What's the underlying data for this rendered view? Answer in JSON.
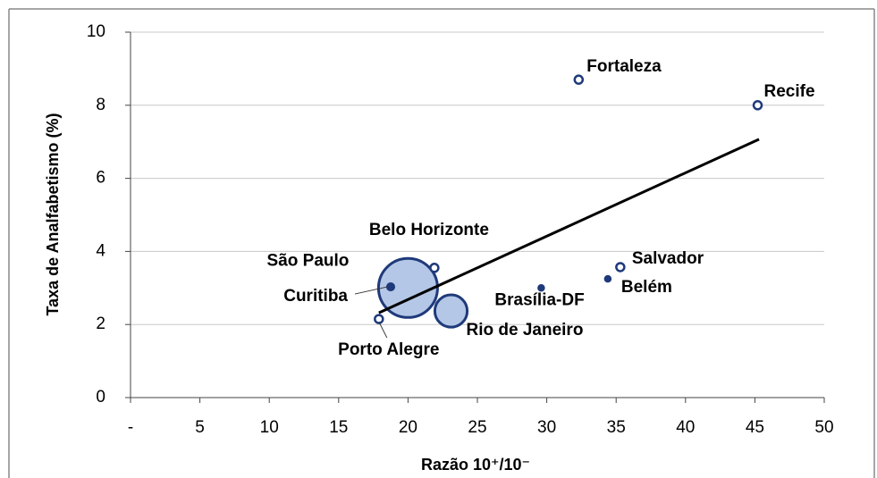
{
  "chart_data": {
    "type": "scatter",
    "x_label": "Razão 10⁺/10⁻",
    "y_label": "Taxa de Analfabetismo (%)",
    "xlim": [
      0,
      50
    ],
    "xticks": [
      {
        "value": 0,
        "label": "-"
      },
      5,
      10,
      15,
      20,
      25,
      30,
      35,
      40,
      45,
      50
    ],
    "ylim": [
      0,
      10
    ],
    "yticks": [
      0,
      2,
      4,
      6,
      8,
      10
    ],
    "grid": true,
    "series": [
      {
        "color": "#b4c7e7",
        "edge_color": "#1f3a7a",
        "labels": [
          "Fortaleza",
          "Recife",
          "Belo Horizonte",
          "São Paulo",
          "Curitiba",
          "Rio de Janeiro",
          "Porto Alegre",
          "Brasília-DF",
          "Salvador",
          "Belém"
        ],
        "x": [
          32.3,
          45.2,
          21.9,
          20.0,
          18.75,
          23.1,
          17.9,
          29.6,
          35.3,
          34.4
        ],
        "values": [
          8.7,
          8.0,
          3.55,
          3.0,
          3.03,
          2.37,
          2.15,
          3.0,
          3.57,
          3.25
        ],
        "sizes": [
          0.21,
          0.21,
          0.21,
          11.3,
          0.15,
          3.4,
          0.21,
          0.09,
          0.21,
          0.09
        ]
      }
    ],
    "trendline": {
      "color": "#000000",
      "x": [
        17.9,
        45.3
      ],
      "y": [
        2.32,
        7.07
      ]
    }
  }
}
